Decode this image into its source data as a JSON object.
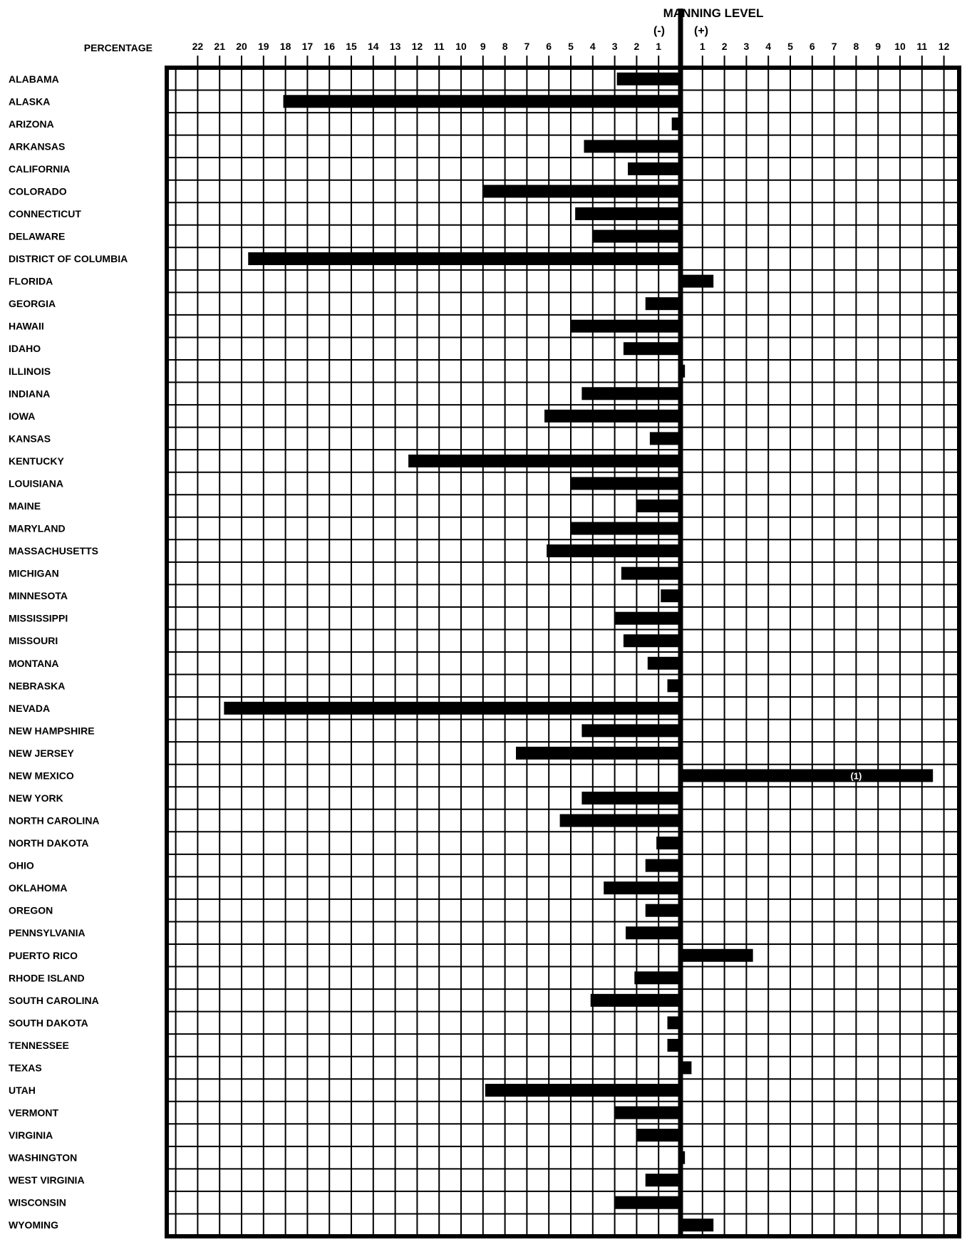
{
  "chart_data": {
    "type": "bar",
    "orientation": "horizontal",
    "title": "MANNING LEVEL",
    "negative_label": "(-)",
    "positive_label": "(+)",
    "xlabel": "PERCENTAGE",
    "x_tick_labels_negative": [
      "22",
      "21",
      "20",
      "19",
      "18",
      "17",
      "16",
      "15",
      "14",
      "13",
      "12",
      "11",
      "10",
      "9",
      "8",
      "7",
      "6",
      "5",
      "4",
      "3",
      "2",
      "1"
    ],
    "x_tick_labels_positive": [
      "1",
      "2",
      "3",
      "4",
      "5",
      "6",
      "7",
      "8",
      "9",
      "10",
      "11",
      "12"
    ],
    "xlim": [
      -22,
      12
    ],
    "grid": true,
    "categories": [
      "ALABAMA",
      "ALASKA",
      "ARIZONA",
      "ARKANSAS",
      "CALIFORNIA",
      "COLORADO",
      "CONNECTICUT",
      "DELAWARE",
      "DISTRICT OF COLUMBIA",
      "FLORIDA",
      "GEORGIA",
      "HAWAII",
      "IDAHO",
      "ILLINOIS",
      "INDIANA",
      "IOWA",
      "KANSAS",
      "KENTUCKY",
      "LOUISIANA",
      "MAINE",
      "MARYLAND",
      "MASSACHUSETTS",
      "MICHIGAN",
      "MINNESOTA",
      "MISSISSIPPI",
      "MISSOURI",
      "MONTANA",
      "NEBRASKA",
      "NEVADA",
      "NEW HAMPSHIRE",
      "NEW JERSEY",
      "NEW MEXICO",
      "NEW YORK",
      "NORTH CAROLINA",
      "NORTH DAKOTA",
      "OHIO",
      "OKLAHOMA",
      "OREGON",
      "PENNSYLVANIA",
      "PUERTO RICO",
      "RHODE ISLAND",
      "SOUTH CAROLINA",
      "SOUTH DAKOTA",
      "TENNESSEE",
      "TEXAS",
      "UTAH",
      "VERMONT",
      "VIRGINIA",
      "WASHINGTON",
      "WEST VIRGINIA",
      "WISCONSIN",
      "WYOMING"
    ],
    "values": [
      -2.9,
      -18.1,
      -0.4,
      -4.4,
      -2.4,
      -9.0,
      -4.8,
      -4.0,
      -19.7,
      1.5,
      -1.6,
      -5.0,
      -2.6,
      0.2,
      -4.5,
      -6.2,
      -1.4,
      -12.4,
      -5.0,
      -2.0,
      -5.0,
      -6.1,
      -2.7,
      -0.9,
      -3.0,
      -2.6,
      -1.5,
      -0.6,
      -20.8,
      -4.5,
      -7.5,
      11.5,
      -4.5,
      -5.5,
      -1.1,
      -1.6,
      -3.5,
      -1.6,
      -2.5,
      3.3,
      -2.1,
      -4.1,
      -0.6,
      -0.6,
      0.5,
      -8.9,
      -3.0,
      -2.0,
      0.2,
      -1.6,
      -3.0,
      1.5
    ],
    "annotations": [
      {
        "category": "NEW MEXICO",
        "text": "(1)"
      }
    ]
  },
  "colors": {
    "bar": "#000000",
    "grid": "#000000",
    "background": "#ffffff"
  }
}
